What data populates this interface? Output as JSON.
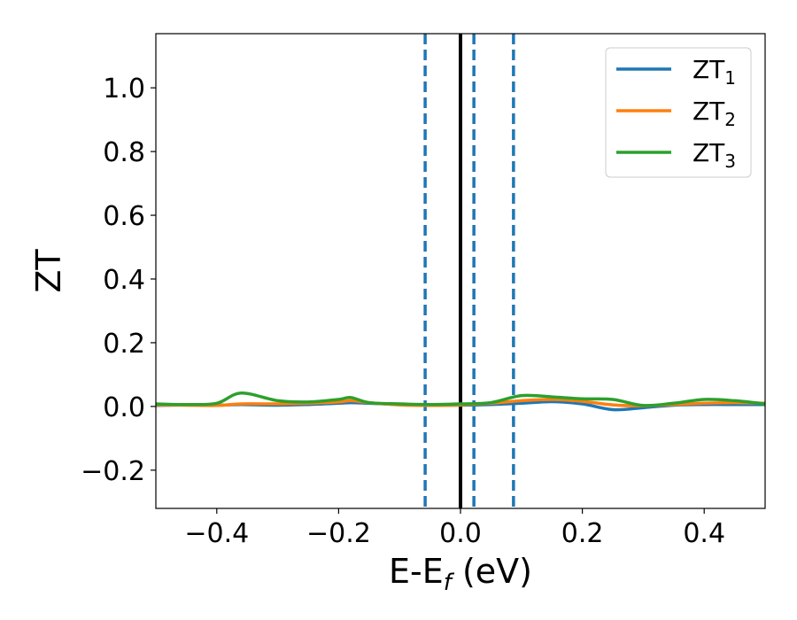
{
  "chart_data": {
    "type": "line",
    "xlabel": "E-E",
    "xlabel_sub": "f",
    "xlabel_unit": " (eV)",
    "ylabel": "ZT",
    "xlim": [
      -0.5,
      0.5
    ],
    "ylim": [
      -0.32,
      1.17
    ],
    "x_ticks": [
      -0.4,
      -0.2,
      0.0,
      0.2,
      0.4
    ],
    "x_tick_labels": [
      "−0.4",
      "−0.2",
      "0.0",
      "0.2",
      "0.4"
    ],
    "y_ticks": [
      -0.2,
      0.0,
      0.2,
      0.4,
      0.6,
      0.8,
      1.0
    ],
    "y_tick_labels": [
      "−0.2",
      "0.0",
      "0.2",
      "0.4",
      "0.6",
      "0.8",
      "1.0"
    ],
    "grid": false,
    "legend_position": "top-right",
    "vertical_lines": [
      {
        "x": -0.058,
        "style": "dashed",
        "color": "#1f77b4"
      },
      {
        "x": 0.0,
        "style": "solid",
        "color": "#000000"
      },
      {
        "x": 0.022,
        "style": "dashed",
        "color": "#1f77b4"
      },
      {
        "x": 0.087,
        "style": "dashed",
        "color": "#1f77b4"
      }
    ],
    "x": [
      -0.5,
      -0.45,
      -0.4,
      -0.36,
      -0.3,
      -0.25,
      -0.2,
      -0.18,
      -0.15,
      -0.1,
      -0.05,
      0.0,
      0.05,
      0.1,
      0.15,
      0.2,
      0.25,
      0.3,
      0.35,
      0.4,
      0.45,
      0.5
    ],
    "series": [
      {
        "name": "ZT",
        "sub": "1",
        "color": "#1f77b4",
        "values": [
          0.003,
          0.005,
          0.004,
          0.006,
          0.004,
          0.006,
          0.01,
          0.012,
          0.01,
          0.006,
          0.004,
          0.004,
          0.006,
          0.01,
          0.015,
          0.008,
          -0.01,
          -0.004,
          0.004,
          0.006,
          0.006,
          0.006
        ]
      },
      {
        "name": "ZT",
        "sub": "2",
        "color": "#ff7f0e",
        "values": [
          0.005,
          0.004,
          0.003,
          0.008,
          0.008,
          0.01,
          0.014,
          0.018,
          0.012,
          0.005,
          0.003,
          0.005,
          0.01,
          0.018,
          0.022,
          0.016,
          0.005,
          0.002,
          0.006,
          0.01,
          0.012,
          0.01
        ]
      },
      {
        "name": "ZT",
        "sub": "3",
        "color": "#2ca02c",
        "values": [
          0.008,
          0.006,
          0.01,
          0.042,
          0.018,
          0.014,
          0.022,
          0.028,
          0.012,
          0.008,
          0.006,
          0.008,
          0.012,
          0.034,
          0.03,
          0.024,
          0.022,
          0.003,
          0.01,
          0.022,
          0.018,
          0.008
        ]
      }
    ]
  }
}
